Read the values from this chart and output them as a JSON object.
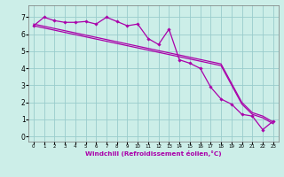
{
  "xlabel": "Windchill (Refroidissement éolien,°C)",
  "background_color": "#cceee8",
  "line_color": "#aa00aa",
  "grid_color": "#99cccc",
  "x_ticks": [
    0,
    1,
    2,
    3,
    4,
    5,
    6,
    7,
    8,
    9,
    10,
    11,
    12,
    13,
    14,
    15,
    16,
    17,
    18,
    19,
    20,
    21,
    22,
    23
  ],
  "y_ticks": [
    0,
    1,
    2,
    3,
    4,
    5,
    6,
    7
  ],
  "ylim": [
    -0.3,
    7.7
  ],
  "xlim": [
    -0.5,
    23.5
  ],
  "line1_x": [
    0,
    1,
    2,
    3,
    4,
    5,
    6,
    7,
    8,
    9,
    10,
    11,
    12,
    13,
    14,
    15,
    16,
    17,
    18,
    19,
    20,
    21,
    22,
    23
  ],
  "line1_y": [
    6.5,
    7.0,
    6.8,
    6.7,
    6.7,
    6.75,
    6.6,
    7.0,
    6.75,
    6.5,
    6.6,
    5.75,
    5.4,
    6.3,
    4.5,
    4.3,
    4.0,
    2.9,
    2.2,
    1.9,
    1.3,
    1.2,
    0.4,
    0.9
  ],
  "line2_y": [
    6.6,
    6.47,
    6.34,
    6.21,
    6.08,
    5.95,
    5.82,
    5.69,
    5.56,
    5.43,
    5.3,
    5.17,
    5.04,
    4.91,
    4.78,
    4.65,
    4.52,
    4.39,
    4.26,
    3.13,
    2.0,
    1.4,
    1.2,
    0.85
  ],
  "line3_y": [
    6.5,
    6.37,
    6.24,
    6.11,
    5.98,
    5.85,
    5.72,
    5.59,
    5.46,
    5.33,
    5.2,
    5.07,
    4.94,
    4.81,
    4.68,
    4.55,
    4.42,
    4.29,
    4.16,
    3.03,
    1.9,
    1.3,
    1.1,
    0.75
  ]
}
